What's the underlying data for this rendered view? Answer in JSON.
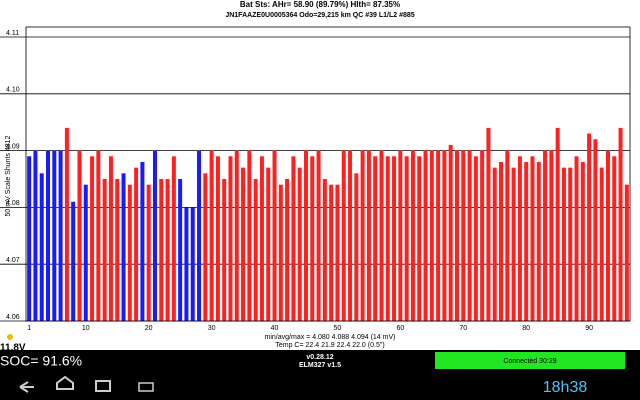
{
  "chart_data": {
    "type": "bar",
    "title": "Bat Sts:  AHr= 58.90 (89.79%) Hlth= 87.35%",
    "subtitle": "JN1FAAZE0U0005364 Odo=29,215 km  QC #39  L1/L2 #885",
    "y_label": "50 mV Scale   Shunts 4812",
    "stats": "min/avg/max = 4.080 4.088 4.094  (14 mV)",
    "temps": "Temp C= 22.4  21.9  22.4  22.0  (0.5\")",
    "categories": [
      1,
      null,
      null,
      null,
      null,
      null,
      null,
      null,
      null,
      10,
      null,
      null,
      null,
      null,
      null,
      null,
      null,
      null,
      null,
      20,
      null,
      null,
      null,
      null,
      null,
      null,
      null,
      null,
      null,
      30,
      null,
      null,
      null,
      null,
      null,
      null,
      null,
      null,
      null,
      40,
      null,
      null,
      null,
      null,
      null,
      null,
      null,
      null,
      null,
      50,
      null,
      null,
      null,
      null,
      null,
      null,
      null,
      null,
      null,
      60,
      null,
      null,
      null,
      null,
      null,
      null,
      null,
      null,
      null,
      70,
      null,
      null,
      null,
      null,
      null,
      null,
      null,
      null,
      null,
      80,
      null,
      null,
      null,
      null,
      null,
      null,
      null,
      null,
      null,
      90,
      null,
      null,
      null,
      null,
      null,
      null
    ],
    "values": [
      4.089,
      4.09,
      4.086,
      4.09,
      4.09,
      4.09,
      4.094,
      4.081,
      4.09,
      4.084,
      4.089,
      4.09,
      4.085,
      4.089,
      4.085,
      4.086,
      4.084,
      4.087,
      4.088,
      4.084,
      4.09,
      4.085,
      4.085,
      4.089,
      4.085,
      4.08,
      4.08,
      4.09,
      4.086,
      4.09,
      4.089,
      4.085,
      4.089,
      4.09,
      4.087,
      4.09,
      4.085,
      4.089,
      4.087,
      4.09,
      4.084,
      4.085,
      4.089,
      4.087,
      4.09,
      4.089,
      4.09,
      4.085,
      4.084,
      4.084,
      4.09,
      4.09,
      4.086,
      4.09,
      4.09,
      4.089,
      4.09,
      4.089,
      4.089,
      4.09,
      4.089,
      4.09,
      4.089,
      4.09,
      4.09,
      4.09,
      4.09,
      4.091,
      4.09,
      4.09,
      4.09,
      4.089,
      4.09,
      4.094,
      4.087,
      4.088,
      4.09,
      4.087,
      4.089,
      4.088,
      4.089,
      4.088,
      4.09,
      4.09,
      4.094,
      4.087,
      4.087,
      4.089,
      4.088,
      4.093,
      4.092,
      4.087,
      4.09,
      4.089,
      4.094,
      4.084
    ],
    "colors": [
      "#1a1aff",
      "#1a1aff",
      "#1a1aff",
      "#1a1aff",
      "#1a1aff",
      "#1a1aff",
      "#ff2020",
      "#1a1aff",
      "#ff2020",
      "#1a1aff",
      "#ff2020",
      "#ff2020",
      "#ff2020",
      "#ff2020",
      "#ff2020",
      "#1a1aff",
      "#ff2020",
      "#ff2020",
      "#1a1aff",
      "#ff2020",
      "#1a1aff",
      "#ff2020",
      "#ff2020",
      "#ff2020",
      "#1a1aff",
      "#1a1aff",
      "#1a1aff",
      "#1a1aff",
      "#ff2020",
      "#ff2020",
      "#ff2020",
      "#ff2020",
      "#ff2020",
      "#ff2020",
      "#ff2020",
      "#ff2020",
      "#ff2020",
      "#ff2020",
      "#ff2020",
      "#ff2020",
      "#ff2020",
      "#ff2020",
      "#ff2020",
      "#ff2020",
      "#ff2020",
      "#ff2020",
      "#ff2020",
      "#ff2020",
      "#ff2020",
      "#ff2020",
      "#ff2020",
      "#ff2020",
      "#ff2020",
      "#ff2020",
      "#ff2020",
      "#ff2020",
      "#ff2020",
      "#ff2020",
      "#ff2020",
      "#ff2020",
      "#ff2020",
      "#ff2020",
      "#ff2020",
      "#ff2020",
      "#ff2020",
      "#ff2020",
      "#ff2020",
      "#ff2020",
      "#ff2020",
      "#ff2020",
      "#ff2020",
      "#ff2020",
      "#ff2020",
      "#ff2020",
      "#ff2020",
      "#ff2020",
      "#ff2020",
      "#ff2020",
      "#ff2020",
      "#ff2020",
      "#ff2020",
      "#ff2020",
      "#ff2020",
      "#ff2020",
      "#ff2020",
      "#ff2020",
      "#ff2020",
      "#ff2020",
      "#ff2020",
      "#ff2020",
      "#ff2020",
      "#ff2020",
      "#ff2020",
      "#ff2020",
      "#ff2020",
      "#ff2020"
    ],
    "ylim": [
      4.06,
      4.11
    ],
    "yticks": [
      4.06,
      4.07,
      4.08,
      4.09,
      {
        "value": 4.1,
        "label": "4.10"
      },
      4.11
    ],
    "grid": true
  },
  "status": {
    "voltage": "11.8V",
    "soc": "SOC= 91.6%",
    "version": "v0.28.12",
    "adapter": "ELM327 v1.5",
    "connection": "Connected 30:29",
    "clock": "18h38"
  }
}
